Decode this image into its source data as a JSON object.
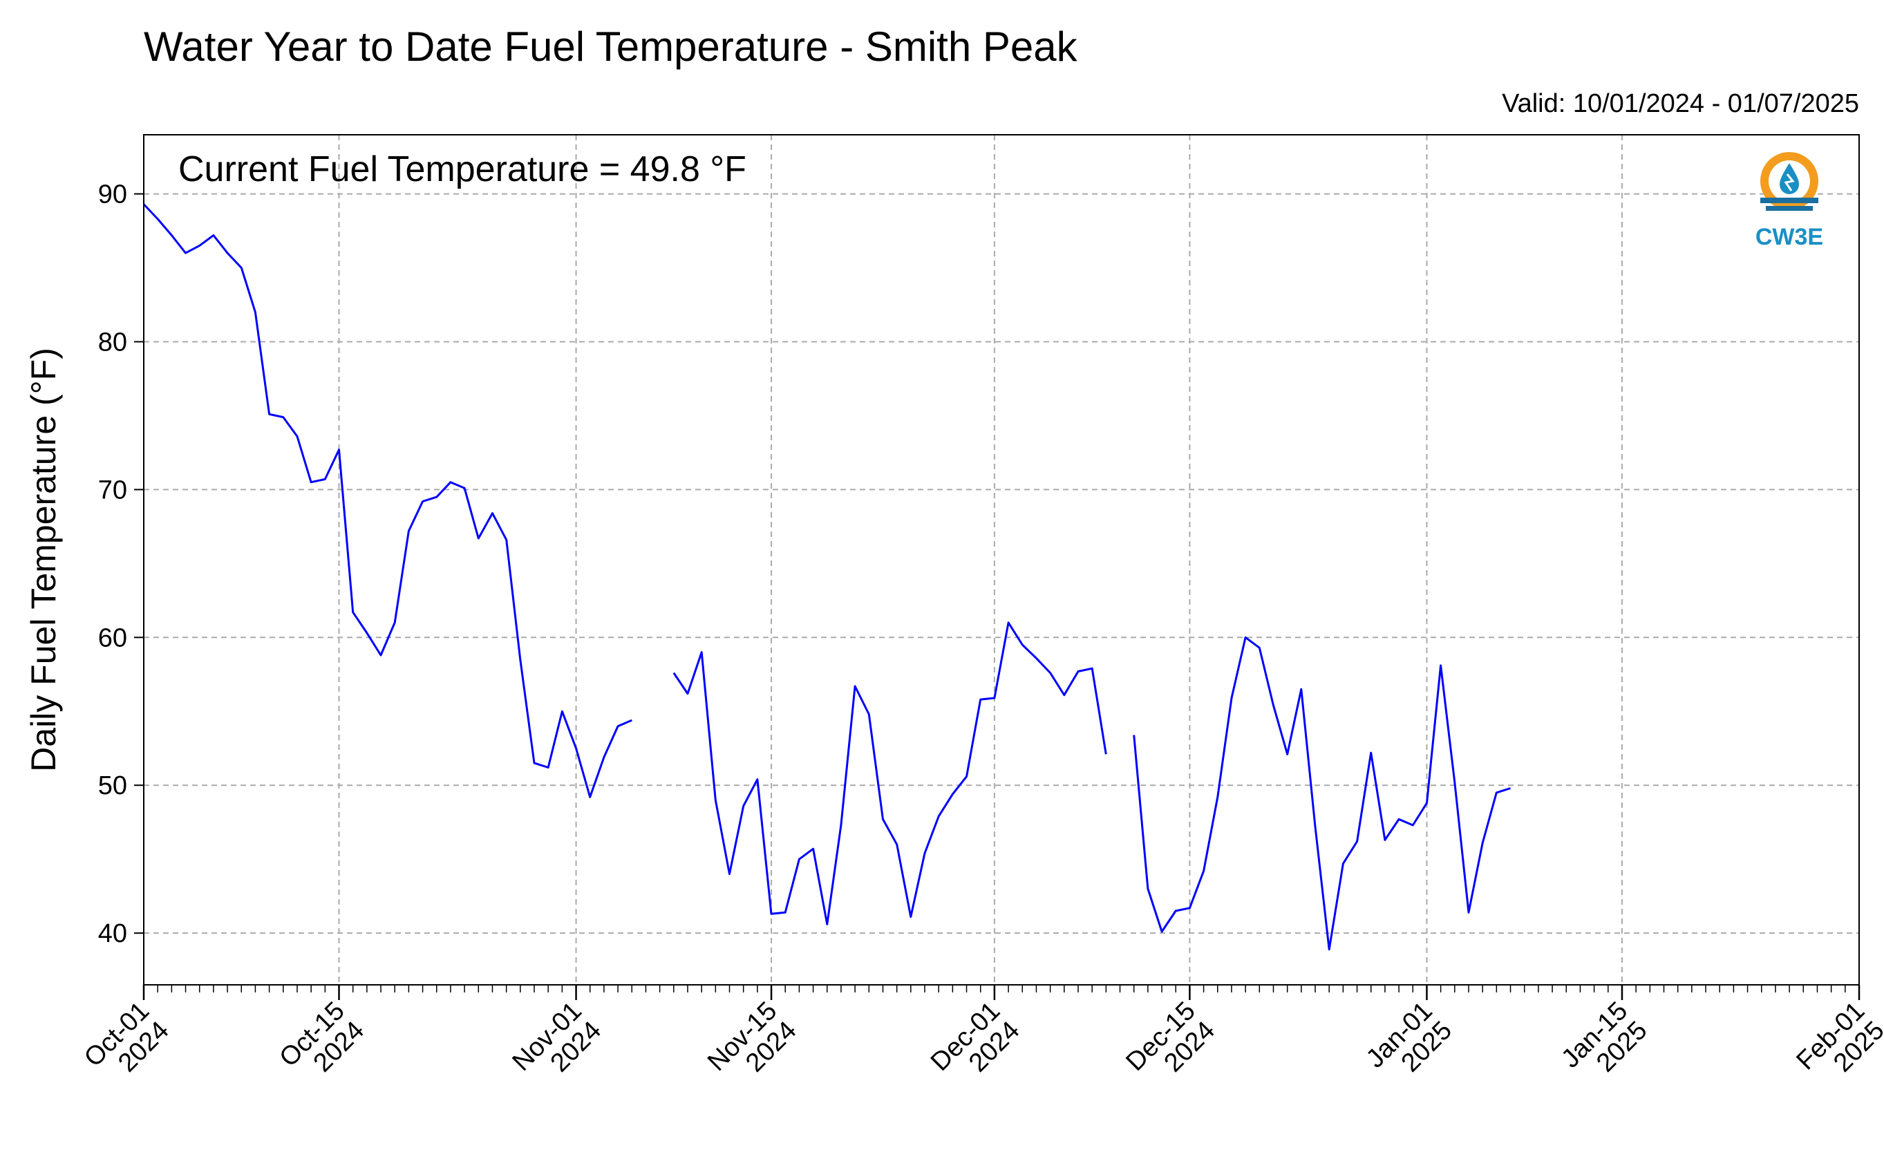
{
  "chart_data": {
    "type": "line",
    "title": "Water Year to Date Fuel Temperature - Smith Peak",
    "valid_text": "Valid: 10/01/2024 - 01/07/2025",
    "annotation": "Current Fuel Temperature = 49.8  °F",
    "ylabel": "Daily Fuel Temperature (°F)",
    "xlim": [
      "2024-10-01",
      "2025-02-01"
    ],
    "ylim": [
      36.5,
      94
    ],
    "yticks": [
      40,
      50,
      60,
      70,
      80,
      90
    ],
    "xticks": [
      {
        "date": "2024-10-01",
        "label": [
          "Oct-01",
          "2024"
        ]
      },
      {
        "date": "2024-10-15",
        "label": [
          "Oct-15",
          "2024"
        ]
      },
      {
        "date": "2024-11-01",
        "label": [
          "Nov-01",
          "2024"
        ]
      },
      {
        "date": "2024-11-15",
        "label": [
          "Nov-15",
          "2024"
        ]
      },
      {
        "date": "2024-12-01",
        "label": [
          "Dec-01",
          "2024"
        ]
      },
      {
        "date": "2024-12-15",
        "label": [
          "Dec-15",
          "2024"
        ]
      },
      {
        "date": "2025-01-01",
        "label": [
          "Jan-01",
          "2025"
        ]
      },
      {
        "date": "2025-01-15",
        "label": [
          "Jan-15",
          "2025"
        ]
      },
      {
        "date": "2025-02-01",
        "label": [
          "Feb-01",
          "2025"
        ]
      }
    ],
    "grid": true,
    "line_color": "#0000ff",
    "series": [
      {
        "x": [
          "2024-10-01",
          "2024-10-02",
          "2024-10-03",
          "2024-10-04",
          "2024-10-05",
          "2024-10-06",
          "2024-10-07",
          "2024-10-08",
          "2024-10-09",
          "2024-10-10",
          "2024-10-11",
          "2024-10-12",
          "2024-10-13",
          "2024-10-14",
          "2024-10-15",
          "2024-10-16",
          "2024-10-17",
          "2024-10-18",
          "2024-10-19",
          "2024-10-20",
          "2024-10-21",
          "2024-10-22",
          "2024-10-23",
          "2024-10-24",
          "2024-10-25",
          "2024-10-26",
          "2024-10-27",
          "2024-10-28",
          "2024-10-29",
          "2024-10-30",
          "2024-10-31",
          "2024-11-01",
          "2024-11-02",
          "2024-11-03",
          "2024-11-04",
          "2024-11-05",
          "2024-11-06",
          "2024-11-07",
          "2024-11-08",
          "2024-11-09",
          "2024-11-10",
          "2024-11-11",
          "2024-11-12",
          "2024-11-13",
          "2024-11-14",
          "2024-11-15",
          "2024-11-16",
          "2024-11-17",
          "2024-11-18",
          "2024-11-19",
          "2024-11-20",
          "2024-11-21",
          "2024-11-22",
          "2024-11-23",
          "2024-11-24",
          "2024-11-25",
          "2024-11-26",
          "2024-11-27",
          "2024-11-28",
          "2024-11-29",
          "2024-11-30",
          "2024-12-01",
          "2024-12-02",
          "2024-12-03",
          "2024-12-04",
          "2024-12-05",
          "2024-12-06",
          "2024-12-07",
          "2024-12-08",
          "2024-12-09",
          "2024-12-10",
          "2024-12-11",
          "2024-12-12",
          "2024-12-13",
          "2024-12-14",
          "2024-12-15",
          "2024-12-16",
          "2024-12-17",
          "2024-12-18",
          "2024-12-19",
          "2024-12-20",
          "2024-12-21",
          "2024-12-22",
          "2024-12-23",
          "2024-12-24",
          "2024-12-25",
          "2024-12-26",
          "2024-12-27",
          "2024-12-28",
          "2024-12-29",
          "2024-12-30",
          "2024-12-31",
          "2025-01-01",
          "2025-01-02",
          "2025-01-03",
          "2025-01-04",
          "2025-01-05",
          "2025-01-06",
          "2025-01-07"
        ],
        "y": [
          89.3,
          88.3,
          87.2,
          86.0,
          86.5,
          87.2,
          86.0,
          85.0,
          82.0,
          75.1,
          74.9,
          73.6,
          70.5,
          70.7,
          72.7,
          61.7,
          60.3,
          58.8,
          61.0,
          67.2,
          69.2,
          69.5,
          70.5,
          70.1,
          66.7,
          68.4,
          66.6,
          58.5,
          51.5,
          51.2,
          55.0,
          52.5,
          49.2,
          51.9,
          54.0,
          54.4,
          null,
          null,
          57.6,
          56.2,
          59.0,
          49.0,
          44.0,
          48.6,
          50.4,
          41.3,
          41.4,
          45.0,
          45.7,
          40.6,
          47.3,
          56.7,
          54.8,
          47.7,
          46.0,
          41.1,
          45.4,
          47.9,
          49.4,
          50.6,
          55.8,
          55.9,
          61.0,
          59.5,
          58.6,
          57.6,
          56.1,
          57.7,
          57.9,
          52.1,
          null,
          53.4,
          43.0,
          40.1,
          41.5,
          41.7,
          44.2,
          49.2,
          55.9,
          60.0,
          59.3,
          55.4,
          52.1,
          56.5,
          47.2,
          38.9,
          44.7,
          46.2,
          52.2,
          46.3,
          47.7,
          47.3,
          48.8,
          58.1,
          50.2,
          41.4,
          46.1,
          49.5,
          49.8
        ]
      }
    ]
  },
  "logo": {
    "text": "CW3E",
    "ring_color": "#f39c1e",
    "drop_color": "#1a8fc4",
    "wave_color": "#1a6fa0"
  }
}
